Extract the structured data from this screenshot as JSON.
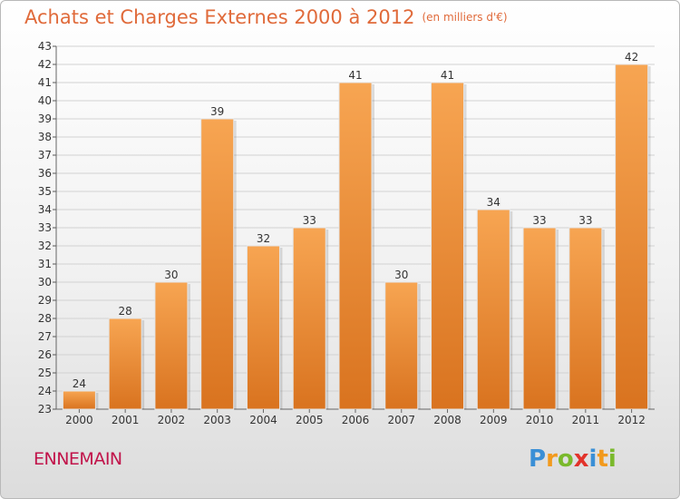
{
  "chart_data": {
    "type": "bar",
    "title": "Achats et Charges Externes 2000 à 2012",
    "subtitle": "(en milliers d'€)",
    "categories": [
      "2000",
      "2001",
      "2002",
      "2003",
      "2004",
      "2005",
      "2006",
      "2007",
      "2008",
      "2009",
      "2010",
      "2011",
      "2012"
    ],
    "values": [
      24,
      28,
      30,
      39,
      32,
      33,
      41,
      30,
      41,
      34,
      33,
      33,
      42
    ],
    "ylim": [
      23,
      43
    ],
    "yticks": [
      23,
      24,
      25,
      26,
      27,
      28,
      29,
      30,
      31,
      32,
      33,
      34,
      35,
      36,
      37,
      38,
      39,
      40,
      41,
      42,
      43
    ],
    "grid": true,
    "bar_color": "#f0913d"
  },
  "footer": {
    "place": "ENNEMAIN",
    "logo_letters": [
      "P",
      "r",
      "o",
      "x",
      "i",
      "t",
      "i"
    ],
    "logo_colors": [
      "#3a8fd6",
      "#f29a1d",
      "#7ab92c",
      "#e2332b",
      "#3a8fd6",
      "#f29a1d",
      "#7ab92c"
    ]
  }
}
